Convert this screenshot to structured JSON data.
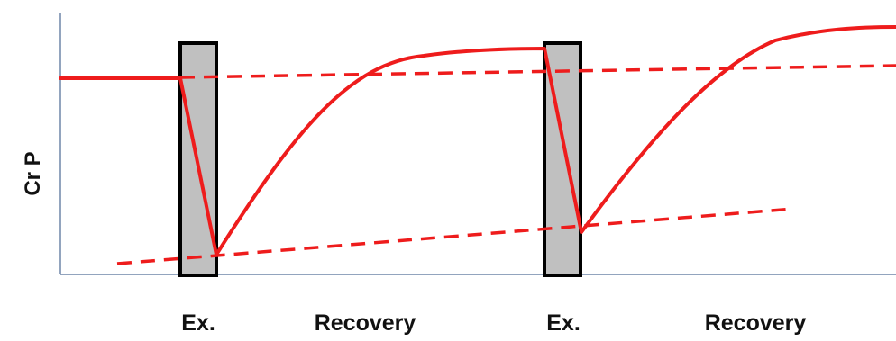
{
  "diagram": {
    "y_axis_label": "Cr P",
    "phase_labels": [
      "Ex.",
      "Recovery",
      "Ex.",
      "Recovery"
    ]
  },
  "colors": {
    "curve": "#ee1c1c",
    "dashed_lines": "#ee1c1c",
    "exercise_box_fill": "#c0c0c0",
    "exercise_box_stroke": "#000000",
    "axis": "#6f86a8"
  }
}
